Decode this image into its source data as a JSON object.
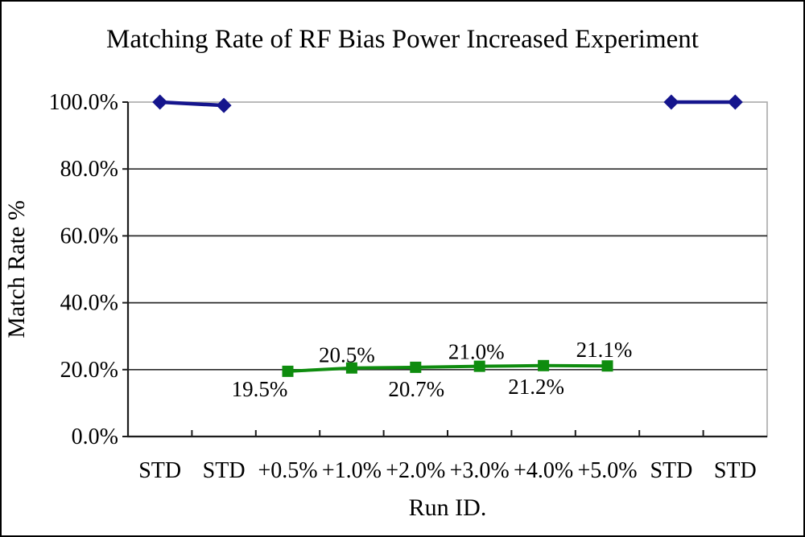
{
  "window": {
    "background": "#ffffff",
    "border_color": "#000000"
  },
  "chart_data": {
    "type": "line",
    "title": "Matching Rate of RF Bias Power Increased Experiment",
    "xlabel": "Run ID.",
    "ylabel": "Match Rate %",
    "categories": [
      "STD",
      "STD",
      "+0.5%",
      "+1.0%",
      "+2.0%",
      "+3.0%",
      "+4.0%",
      "+5.0%",
      "STD",
      "STD"
    ],
    "ylim": [
      0,
      100
    ],
    "yticks": [
      {
        "value": 0,
        "label": "0.0%"
      },
      {
        "value": 20,
        "label": "20.0%"
      },
      {
        "value": 40,
        "label": "40.0%"
      },
      {
        "value": 60,
        "label": "60.0%"
      },
      {
        "value": 80,
        "label": "80.0%"
      },
      {
        "value": 100,
        "label": "100.0%"
      }
    ],
    "grid": true,
    "legend": "none",
    "colors": {
      "plot_border": "#a9a9a9",
      "gridline": "#2a2a2a",
      "axis": "#1c1c1c",
      "text": "#000000"
    },
    "series": [
      {
        "id": "std-runs",
        "marker": "diamond",
        "color": "#15158d",
        "line_width": 4.5,
        "segments": [
          [
            0,
            1
          ],
          [
            2,
            3
          ]
        ],
        "points": [
          {
            "category_index": 0,
            "value": 100.0
          },
          {
            "category_index": 1,
            "value": 99.0
          },
          {
            "category_index": 8,
            "value": 100.0
          },
          {
            "category_index": 9,
            "value": 100.0
          }
        ]
      },
      {
        "id": "rf-bias-increased-runs",
        "marker": "square",
        "color": "#0e8c0e",
        "line_width": 4,
        "points": [
          {
            "category_index": 2,
            "value": 19.5,
            "label": "19.5%",
            "label_dx": -35,
            "label_dy": 31
          },
          {
            "category_index": 3,
            "value": 20.5,
            "label": "20.5%",
            "label_dx": -6,
            "label_dy": -7
          },
          {
            "category_index": 4,
            "value": 20.7,
            "label": "20.7%",
            "label_dx": 1,
            "label_dy": 36
          },
          {
            "category_index": 5,
            "value": 21.0,
            "label": "21.0%",
            "label_dx": -4,
            "label_dy": -9
          },
          {
            "category_index": 6,
            "value": 21.2,
            "label": "21.2%",
            "label_dx": -9,
            "label_dy": 35
          },
          {
            "category_index": 7,
            "value": 21.1,
            "label": "21.1%",
            "label_dx": -4,
            "label_dy": -11
          }
        ]
      }
    ]
  }
}
